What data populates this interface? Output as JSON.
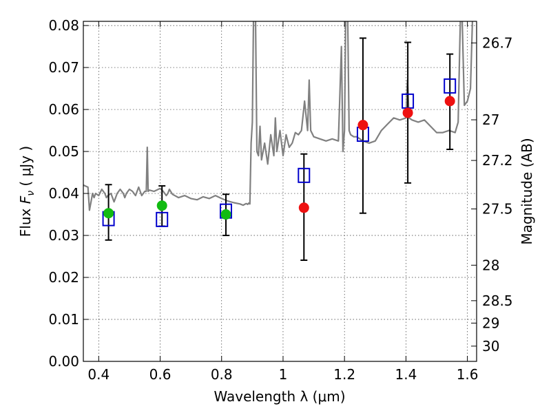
{
  "chart_data": {
    "type": "scatter",
    "xlabel": "Wavelength  λ (μm)",
    "ylabel": "Flux  F_ν  ( μJy )",
    "ylabel_parts": {
      "pre": "Flux  ",
      "symbol": "F",
      "subscript": "ν",
      "post": "  ( μJy )"
    },
    "y2label": "Magnitude (AB)",
    "xlim": [
      0.35,
      1.63
    ],
    "ylim": [
      0.0,
      0.081
    ],
    "grid": true,
    "x_ticks": [
      {
        "value": 0.4,
        "label": "0.4"
      },
      {
        "value": 0.6,
        "label": "0.6"
      },
      {
        "value": 0.8,
        "label": "0.8"
      },
      {
        "value": 1.0,
        "label": "1"
      },
      {
        "value": 1.2,
        "label": "1.2"
      },
      {
        "value": 1.4,
        "label": "1.4"
      },
      {
        "value": 1.6,
        "label": "1.6"
      }
    ],
    "y_ticks": [
      {
        "value": 0.0,
        "label": "0.00"
      },
      {
        "value": 0.01,
        "label": "0.01"
      },
      {
        "value": 0.02,
        "label": "0.02"
      },
      {
        "value": 0.03,
        "label": "0.03"
      },
      {
        "value": 0.04,
        "label": "0.04"
      },
      {
        "value": 0.05,
        "label": "0.05"
      },
      {
        "value": 0.06,
        "label": "0.06"
      },
      {
        "value": 0.07,
        "label": "0.07"
      },
      {
        "value": 0.08,
        "label": "0.08"
      }
    ],
    "y2_ticks": [
      {
        "mag": 26.7,
        "label": "26.7"
      },
      {
        "mag": 27,
        "label": "27"
      },
      {
        "mag": 27.2,
        "label": "27.2"
      },
      {
        "mag": 27.5,
        "label": "27.5"
      },
      {
        "mag": 28,
        "label": "28"
      },
      {
        "mag": 28.5,
        "label": "28.5"
      },
      {
        "mag": 29,
        "label": "29"
      },
      {
        "mag": 30,
        "label": "30"
      }
    ],
    "colors": {
      "model": "#808080",
      "green": "#11bb11",
      "red": "#ee1111",
      "blue_square": "#0000cc",
      "errorbar": "#000000"
    },
    "model_spectrum": {
      "x": [
        0.35,
        0.365,
        0.37,
        0.38,
        0.385,
        0.39,
        0.4,
        0.41,
        0.42,
        0.425,
        0.43,
        0.44,
        0.45,
        0.46,
        0.47,
        0.48,
        0.485,
        0.49,
        0.5,
        0.51,
        0.52,
        0.53,
        0.54,
        0.55,
        0.555,
        0.558,
        0.561,
        0.565,
        0.58,
        0.6,
        0.61,
        0.62,
        0.625,
        0.63,
        0.64,
        0.66,
        0.68,
        0.7,
        0.72,
        0.74,
        0.76,
        0.78,
        0.8,
        0.82,
        0.84,
        0.86,
        0.87,
        0.88,
        0.885,
        0.888,
        0.892,
        0.896,
        0.9,
        0.905,
        0.91,
        0.915,
        0.92,
        0.925,
        0.93,
        0.94,
        0.95,
        0.96,
        0.97,
        0.975,
        0.98,
        0.99,
        1.0,
        1.01,
        1.02,
        1.03,
        1.04,
        1.05,
        1.06,
        1.07,
        1.08,
        1.085,
        1.09,
        1.1,
        1.12,
        1.14,
        1.16,
        1.18,
        1.19,
        1.195,
        1.2,
        1.205,
        1.21,
        1.215,
        1.22,
        1.23,
        1.24,
        1.26,
        1.28,
        1.3,
        1.32,
        1.34,
        1.36,
        1.38,
        1.4,
        1.405,
        1.41,
        1.42,
        1.44,
        1.46,
        1.48,
        1.5,
        1.52,
        1.54,
        1.56,
        1.57,
        1.575,
        1.58,
        1.59,
        1.6,
        1.61,
        1.62,
        1.63
      ],
      "y": [
        0.042,
        0.0415,
        0.036,
        0.04,
        0.039,
        0.04,
        0.0395,
        0.041,
        0.04,
        0.039,
        0.0395,
        0.04,
        0.038,
        0.04,
        0.041,
        0.04,
        0.039,
        0.04,
        0.041,
        0.0405,
        0.0395,
        0.0415,
        0.0395,
        0.0405,
        0.0405,
        0.051,
        0.0405,
        0.0408,
        0.0405,
        0.0412,
        0.0405,
        0.0395,
        0.04,
        0.041,
        0.0398,
        0.039,
        0.0395,
        0.0388,
        0.0385,
        0.0392,
        0.0388,
        0.0395,
        0.0388,
        0.0382,
        0.0378,
        0.0375,
        0.0372,
        0.0376,
        0.0374,
        0.0377,
        0.0375,
        0.052,
        0.057,
        0.09,
        0.085,
        0.05,
        0.049,
        0.056,
        0.048,
        0.052,
        0.047,
        0.054,
        0.049,
        0.058,
        0.05,
        0.055,
        0.049,
        0.054,
        0.051,
        0.052,
        0.0545,
        0.054,
        0.055,
        0.062,
        0.055,
        0.067,
        0.055,
        0.0535,
        0.053,
        0.0525,
        0.053,
        0.0525,
        0.075,
        0.05,
        0.055,
        0.09,
        0.085,
        0.055,
        0.054,
        0.0535,
        0.0535,
        0.0525,
        0.052,
        0.0525,
        0.055,
        0.0565,
        0.058,
        0.0575,
        0.058,
        0.067,
        0.058,
        0.0575,
        0.057,
        0.0575,
        0.056,
        0.0545,
        0.0545,
        0.055,
        0.0545,
        0.057,
        0.075,
        0.09,
        0.061,
        0.062,
        0.065,
        0.09,
        0.09
      ]
    },
    "series": [
      {
        "marker": "circle",
        "color": "green",
        "points": [
          {
            "x": 0.432,
            "y": 0.0353,
            "err_lo": 0.0289,
            "err_hi": 0.0421
          },
          {
            "x": 0.606,
            "y": 0.0371,
            "err_lo": 0.0322,
            "err_hi": 0.0418
          },
          {
            "x": 0.814,
            "y": 0.035,
            "err_lo": 0.03,
            "err_hi": 0.0398
          }
        ]
      },
      {
        "marker": "circle",
        "color": "red",
        "points": [
          {
            "x": 1.068,
            "y": 0.0366,
            "err_lo": 0.0241,
            "err_hi": 0.0494
          },
          {
            "x": 1.26,
            "y": 0.0563,
            "err_lo": 0.0353,
            "err_hi": 0.077
          },
          {
            "x": 1.406,
            "y": 0.0592,
            "err_lo": 0.0425,
            "err_hi": 0.076
          },
          {
            "x": 1.543,
            "y": 0.062,
            "err_lo": 0.0505,
            "err_hi": 0.0732
          }
        ]
      },
      {
        "marker": "square",
        "color": "blue_square",
        "points": [
          {
            "x": 0.432,
            "y": 0.034
          },
          {
            "x": 0.606,
            "y": 0.0338
          },
          {
            "x": 0.814,
            "y": 0.0358
          },
          {
            "x": 1.068,
            "y": 0.0443
          },
          {
            "x": 1.26,
            "y": 0.0541
          },
          {
            "x": 1.406,
            "y": 0.062
          },
          {
            "x": 1.543,
            "y": 0.0656
          }
        ]
      }
    ]
  }
}
